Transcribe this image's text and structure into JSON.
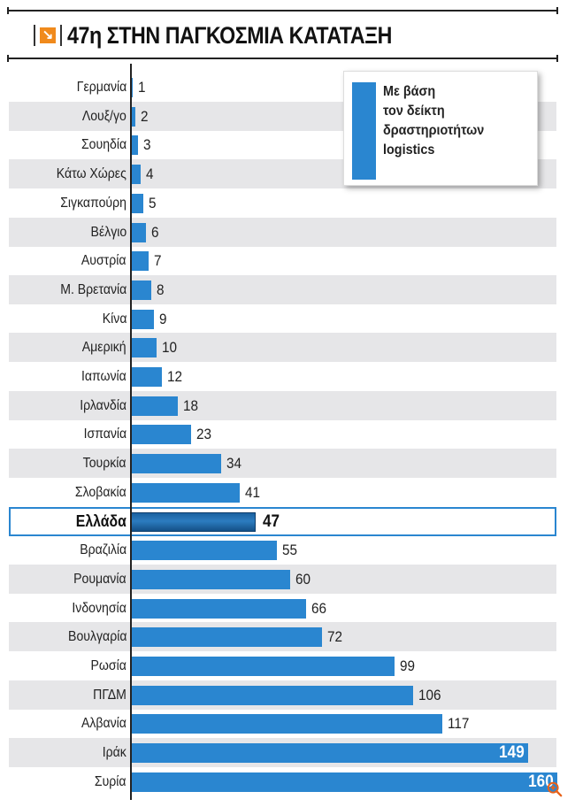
{
  "header": {
    "title": "47η ΣΤΗΝ ΠΑΓΚΟΣΜΙΑ ΚΑΤΑΤΑΞΗ",
    "icon": "arrow-down-right-icon"
  },
  "legend": {
    "lines": [
      "Με βάση",
      "τον δείκτη",
      "δραστηριοτήτων",
      "logistics"
    ],
    "color": "#2a86d0"
  },
  "colors": {
    "bar": "#2a86d0",
    "highlight_bar": "#1a5f9c",
    "row_shade": "#e6e6e8",
    "accent": "#f08a1c"
  },
  "chart_data": {
    "type": "bar",
    "orientation": "horizontal",
    "title": "47η ΣΤΗΝ ΠΑΓΚΟΣΜΙΑ ΚΑΤΑΤΑΞΗ",
    "xlabel": "",
    "ylabel": "",
    "legend": [
      "Με βάση τον δείκτη δραστηριοτήτων logistics"
    ],
    "legend_position": "top-right",
    "grid": false,
    "xlim": [
      0,
      160
    ],
    "highlight": "Ελλάδα",
    "categories": [
      "Γερμανία",
      "Λουξ/γο",
      "Σουηδία",
      "Κάτω Χώρες",
      "Σιγκαπούρη",
      "Βέλγιο",
      "Αυστρία",
      "Μ. Βρετανία",
      "Κίνα",
      "Αμερική",
      "Ιαπωνία",
      "Ιρλανδία",
      "Ισπανία",
      "Τουρκία",
      "Σλοβακία",
      "Ελλάδα",
      "Βραζιλία",
      "Ρουμανία",
      "Ινδονησία",
      "Βουλγαρία",
      "Ρωσία",
      "ΠΓΔΜ",
      "Αλβανία",
      "Ιράκ",
      "Συρία"
    ],
    "values": [
      1,
      2,
      3,
      4,
      5,
      6,
      7,
      8,
      9,
      10,
      12,
      18,
      23,
      34,
      41,
      47,
      55,
      60,
      66,
      72,
      99,
      106,
      117,
      149,
      160
    ]
  }
}
